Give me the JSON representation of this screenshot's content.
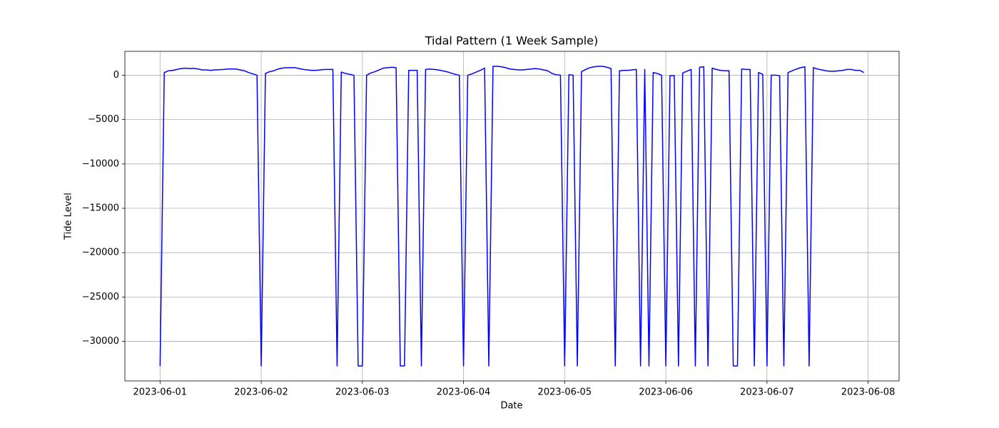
{
  "chart_data": {
    "type": "line",
    "title": "Tidal Pattern (1 Week Sample)",
    "xlabel": "Date",
    "ylabel": "Tide Level",
    "color": "blue",
    "grid": true,
    "x": [
      "2023-06-01 00:00",
      "2023-06-01 01:00",
      "2023-06-01 02:00",
      "2023-06-01 03:00",
      "2023-06-01 04:00",
      "2023-06-01 05:00",
      "2023-06-01 06:00",
      "2023-06-01 07:00",
      "2023-06-01 08:00",
      "2023-06-01 09:00",
      "2023-06-01 10:00",
      "2023-06-01 11:00",
      "2023-06-01 12:00",
      "2023-06-01 13:00",
      "2023-06-01 14:00",
      "2023-06-01 15:00",
      "2023-06-01 16:00",
      "2023-06-01 17:00",
      "2023-06-01 18:00",
      "2023-06-01 19:00",
      "2023-06-01 20:00",
      "2023-06-01 21:00",
      "2023-06-01 22:00",
      "2023-06-01 23:00",
      "2023-06-02 00:00",
      "2023-06-02 01:00",
      "2023-06-02 02:00",
      "2023-06-02 03:00",
      "2023-06-02 04:00",
      "2023-06-02 05:00",
      "2023-06-02 06:00",
      "2023-06-02 07:00",
      "2023-06-02 08:00",
      "2023-06-02 09:00",
      "2023-06-02 10:00",
      "2023-06-02 11:00",
      "2023-06-02 12:00",
      "2023-06-02 13:00",
      "2023-06-02 14:00",
      "2023-06-02 15:00",
      "2023-06-02 16:00",
      "2023-06-02 17:00",
      "2023-06-02 18:00",
      "2023-06-02 19:00",
      "2023-06-02 20:00",
      "2023-06-02 21:00",
      "2023-06-02 22:00",
      "2023-06-02 23:00",
      "2023-06-03 00:00",
      "2023-06-03 01:00",
      "2023-06-03 02:00",
      "2023-06-03 03:00",
      "2023-06-03 04:00",
      "2023-06-03 05:00",
      "2023-06-03 06:00",
      "2023-06-03 07:00",
      "2023-06-03 08:00",
      "2023-06-03 09:00",
      "2023-06-03 10:00",
      "2023-06-03 11:00",
      "2023-06-03 12:00",
      "2023-06-03 13:00",
      "2023-06-03 14:00",
      "2023-06-03 15:00",
      "2023-06-03 16:00",
      "2023-06-03 17:00",
      "2023-06-03 18:00",
      "2023-06-03 19:00",
      "2023-06-03 20:00",
      "2023-06-03 21:00",
      "2023-06-03 22:00",
      "2023-06-03 23:00",
      "2023-06-04 00:00",
      "2023-06-04 01:00",
      "2023-06-04 02:00",
      "2023-06-04 03:00",
      "2023-06-04 04:00",
      "2023-06-04 05:00",
      "2023-06-04 06:00",
      "2023-06-04 07:00",
      "2023-06-04 08:00",
      "2023-06-04 09:00",
      "2023-06-04 10:00",
      "2023-06-04 11:00",
      "2023-06-04 12:00",
      "2023-06-04 13:00",
      "2023-06-04 14:00",
      "2023-06-04 15:00",
      "2023-06-04 16:00",
      "2023-06-04 17:00",
      "2023-06-04 18:00",
      "2023-06-04 19:00",
      "2023-06-04 20:00",
      "2023-06-04 21:00",
      "2023-06-04 22:00",
      "2023-06-04 23:00",
      "2023-06-05 00:00",
      "2023-06-05 01:00",
      "2023-06-05 02:00",
      "2023-06-05 03:00",
      "2023-06-05 04:00",
      "2023-06-05 05:00",
      "2023-06-05 06:00",
      "2023-06-05 07:00",
      "2023-06-05 08:00",
      "2023-06-05 09:00",
      "2023-06-05 10:00",
      "2023-06-05 11:00",
      "2023-06-05 12:00",
      "2023-06-05 13:00",
      "2023-06-05 14:00",
      "2023-06-05 15:00",
      "2023-06-05 16:00",
      "2023-06-05 17:00",
      "2023-06-05 18:00",
      "2023-06-05 19:00",
      "2023-06-05 20:00",
      "2023-06-05 21:00",
      "2023-06-05 22:00",
      "2023-06-05 23:00",
      "2023-06-06 00:00",
      "2023-06-06 01:00",
      "2023-06-06 02:00",
      "2023-06-06 03:00",
      "2023-06-06 04:00",
      "2023-06-06 05:00",
      "2023-06-06 06:00",
      "2023-06-06 07:00",
      "2023-06-06 08:00",
      "2023-06-06 09:00",
      "2023-06-06 10:00",
      "2023-06-06 11:00",
      "2023-06-06 12:00",
      "2023-06-06 13:00",
      "2023-06-06 14:00",
      "2023-06-06 15:00",
      "2023-06-06 16:00",
      "2023-06-06 17:00",
      "2023-06-06 18:00",
      "2023-06-06 19:00",
      "2023-06-06 20:00",
      "2023-06-06 21:00",
      "2023-06-06 22:00",
      "2023-06-06 23:00",
      "2023-06-07 00:00",
      "2023-06-07 01:00",
      "2023-06-07 02:00",
      "2023-06-07 03:00",
      "2023-06-07 04:00",
      "2023-06-07 05:00",
      "2023-06-07 06:00",
      "2023-06-07 07:00",
      "2023-06-07 08:00",
      "2023-06-07 09:00",
      "2023-06-07 10:00",
      "2023-06-07 11:00",
      "2023-06-07 12:00",
      "2023-06-07 13:00",
      "2023-06-07 14:00",
      "2023-06-07 15:00",
      "2023-06-07 16:00",
      "2023-06-07 17:00",
      "2023-06-07 18:00",
      "2023-06-07 19:00",
      "2023-06-07 20:00",
      "2023-06-07 21:00",
      "2023-06-07 22:00",
      "2023-06-07 23:00"
    ],
    "values": [
      -32768,
      300,
      500,
      550,
      650,
      750,
      800,
      750,
      780,
      700,
      600,
      600,
      550,
      600,
      620,
      650,
      700,
      700,
      700,
      600,
      500,
      300,
      150,
      0,
      -32768,
      200,
      400,
      500,
      700,
      800,
      850,
      850,
      850,
      750,
      650,
      600,
      550,
      550,
      600,
      650,
      650,
      650,
      -32768,
      350,
      200,
      100,
      0,
      -32768,
      -32768,
      0,
      250,
      400,
      600,
      800,
      850,
      900,
      850,
      -32768,
      -32768,
      550,
      550,
      550,
      -32768,
      650,
      700,
      650,
      600,
      500,
      400,
      250,
      100,
      0,
      -32768,
      0,
      150,
      350,
      550,
      800,
      -32768,
      1000,
      1000,
      950,
      850,
      700,
      650,
      600,
      600,
      650,
      700,
      750,
      700,
      600,
      500,
      200,
      50,
      0,
      -32768,
      50,
      0,
      -32768,
      400,
      650,
      850,
      950,
      1000,
      1000,
      900,
      750,
      -32768,
      500,
      550,
      550,
      600,
      650,
      -32768,
      650,
      -32768,
      300,
      200,
      0,
      -32768,
      -50,
      -50,
      -32768,
      250,
      450,
      650,
      -32768,
      900,
      950,
      -32768,
      800,
      650,
      550,
      500,
      500,
      -32768,
      -32768,
      700,
      650,
      650,
      -32768,
      300,
      100,
      -32768,
      0,
      0,
      -50,
      -32768,
      300,
      500,
      700,
      850,
      950,
      -32768,
      850,
      700,
      600,
      500,
      450,
      450,
      500,
      550,
      650,
      650,
      550,
      550,
      300
    ],
    "xlim": [
      "2023-05-31 15:39",
      "2023-06-08 07:21"
    ],
    "xticks": [
      "2023-06-01",
      "2023-06-02",
      "2023-06-03",
      "2023-06-04",
      "2023-06-05",
      "2023-06-06",
      "2023-06-07",
      "2023-06-08"
    ],
    "ylim": [
      -34456,
      2688
    ],
    "yticks": [
      0,
      {
        "value": -5000,
        "label": "−5000"
      },
      {
        "value": -10000,
        "label": "−10000"
      },
      {
        "value": -15000,
        "label": "−15000"
      },
      {
        "value": -20000,
        "label": "−20000"
      },
      {
        "value": -25000,
        "label": "−25000"
      },
      {
        "value": -30000,
        "label": "−30000"
      }
    ]
  }
}
